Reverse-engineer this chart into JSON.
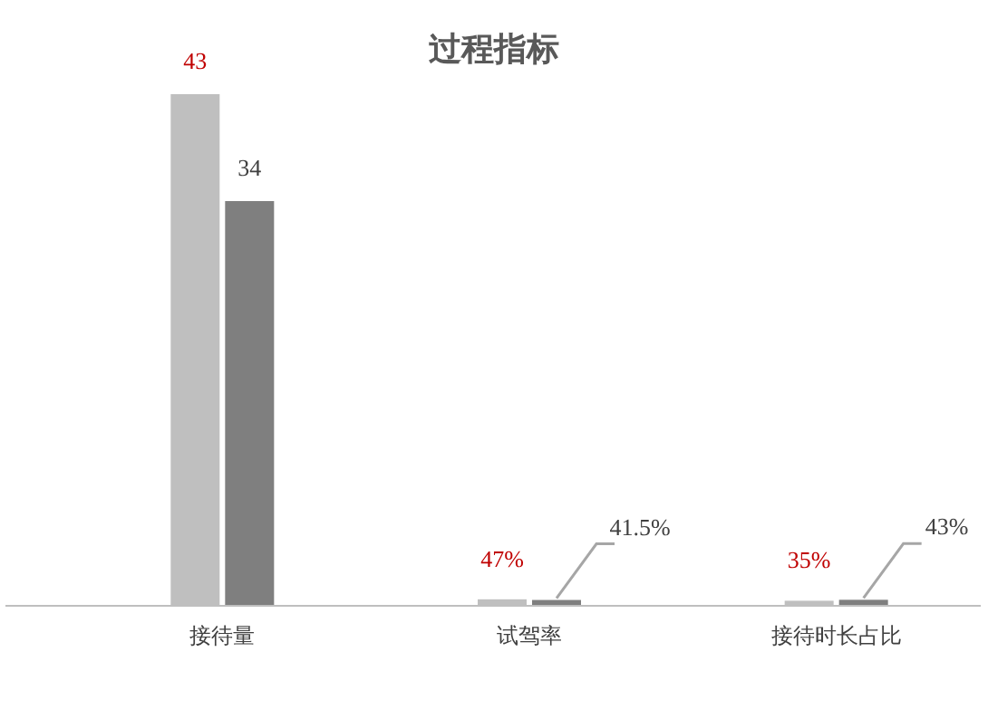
{
  "chart_data": {
    "type": "bar",
    "title": "过程指标",
    "categories": [
      "接待量",
      "试驾率",
      "接待时长占比"
    ],
    "series": [
      {
        "color": "#bfbfbf",
        "values": [
          43,
          0.47,
          0.35
        ],
        "value_labels": [
          "43",
          "47%",
          "35%"
        ]
      },
      {
        "color": "#7f7f7f",
        "values": [
          34,
          0.415,
          0.43
        ],
        "value_labels": [
          "34",
          "41.5%",
          "43%"
        ]
      }
    ]
  }
}
